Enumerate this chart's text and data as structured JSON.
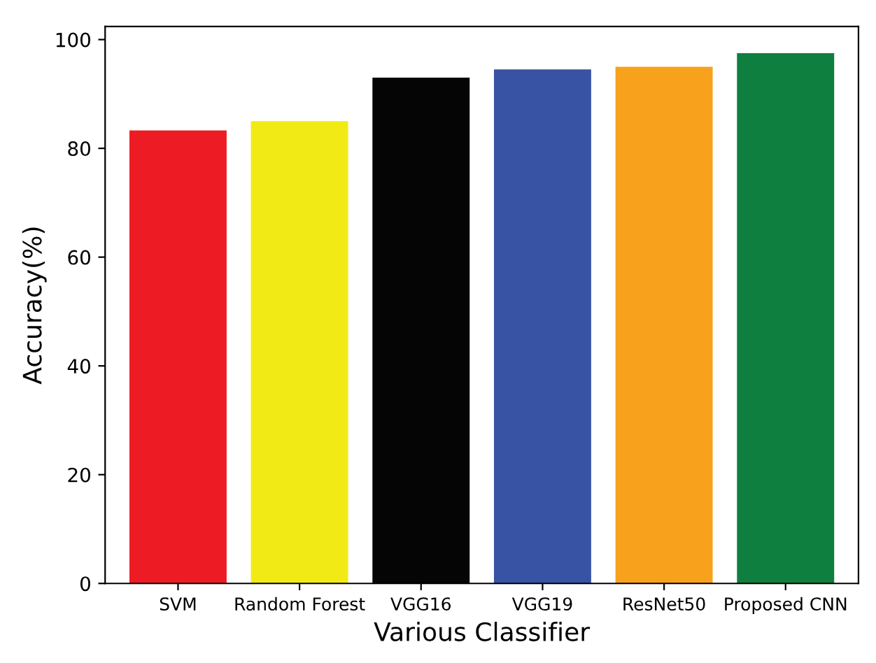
{
  "chart_data": {
    "type": "bar",
    "xlabel": "Various Classifier",
    "ylabel": "Accuracy(%)",
    "categories": [
      "SVM",
      "Random Forest",
      "VGG16",
      "VGG19",
      "ResNet50",
      "Proposed CNN"
    ],
    "values": [
      83.3,
      85.0,
      93.0,
      94.5,
      95.0,
      97.5
    ],
    "colors": [
      "#ed1c24",
      "#f2ea14",
      "#050505",
      "#3853a4",
      "#f7a11c",
      "#0f7f3f"
    ],
    "ylim": [
      0,
      102.4
    ],
    "yticks": [
      0,
      20,
      40,
      60,
      80,
      100
    ]
  }
}
